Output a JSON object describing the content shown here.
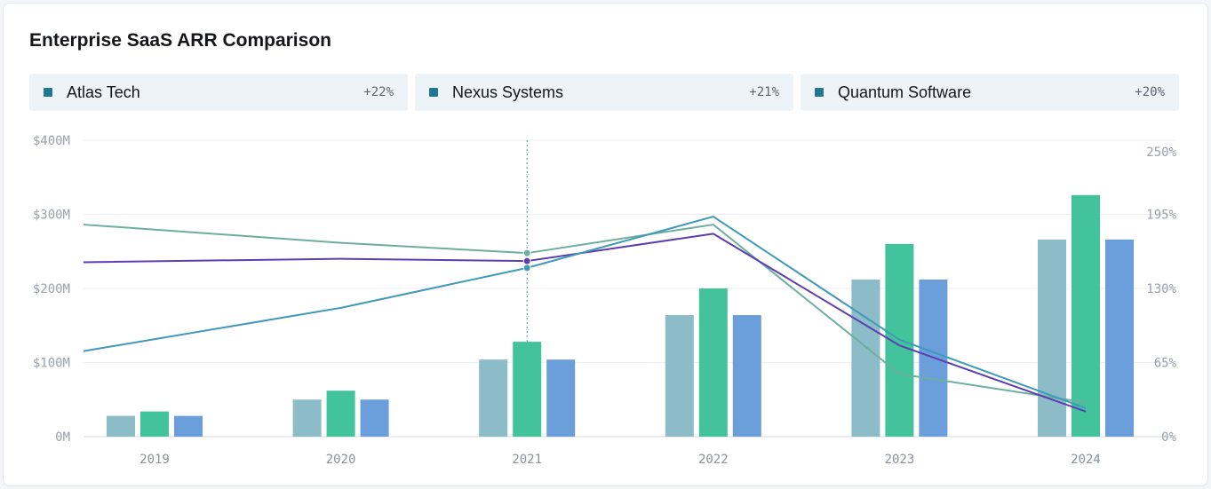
{
  "title": "Enterprise SaaS ARR Comparison",
  "legend": [
    {
      "name": "Atlas Tech",
      "growth": "+22%",
      "color": "#1e7896"
    },
    {
      "name": "Nexus Systems",
      "growth": "+21%",
      "color": "#1e7896"
    },
    {
      "name": "Quantum Software",
      "growth": "+20%",
      "color": "#1e7896"
    }
  ],
  "chart_data": {
    "type": "bar",
    "categories": [
      "2019",
      "2020",
      "2021",
      "2022",
      "2023",
      "2024"
    ],
    "y_left": {
      "ticks": [
        "0M",
        "$100M",
        "$200M",
        "$300M",
        "$400M"
      ],
      "range": [
        0,
        400
      ]
    },
    "y_right": {
      "ticks": [
        "0%",
        "65%",
        "130%",
        "195%",
        "250%"
      ],
      "range": [
        0,
        260
      ]
    },
    "grid": true,
    "highlight_category": "2021",
    "bar_series": [
      {
        "name": "Atlas Tech",
        "color": "#8bbcc8",
        "values": [
          28,
          50,
          104,
          164,
          212,
          266
        ]
      },
      {
        "name": "Nexus Systems",
        "color": "#43c39b",
        "values": [
          34,
          62,
          128,
          200,
          260,
          326
        ]
      },
      {
        "name": "Quantum Software",
        "color": "#6b9fdc",
        "values": [
          28,
          50,
          104,
          164,
          212,
          266
        ]
      }
    ],
    "line_series": [
      {
        "color": "#6caf9e",
        "values": [
          186,
          170,
          161,
          186,
          55,
          30
        ]
      },
      {
        "color": "#5b3eb2",
        "values": [
          153,
          156,
          154,
          178,
          80,
          22
        ]
      },
      {
        "color": "#3f9ab8",
        "values": [
          75,
          113,
          148,
          193,
          85,
          25
        ]
      }
    ]
  }
}
